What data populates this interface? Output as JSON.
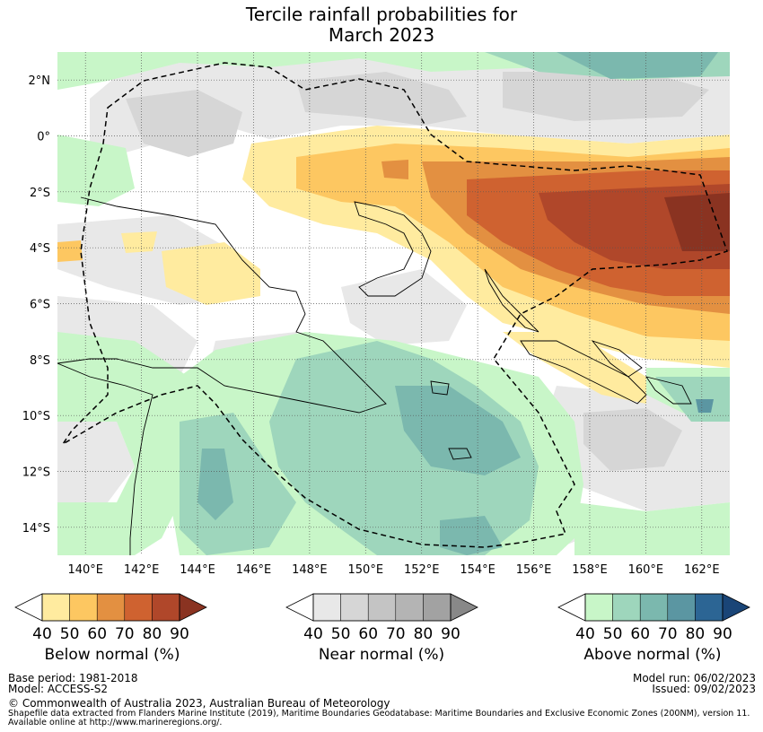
{
  "title_line1": "Tercile rainfall probabilities for",
  "title_line2": "March 2023",
  "map": {
    "lon_range": [
      139,
      163
    ],
    "lat_range": [
      -15,
      3
    ],
    "lon_ticks": [
      "140°E",
      "142°E",
      "144°E",
      "146°E",
      "148°E",
      "150°E",
      "152°E",
      "154°E",
      "156°E",
      "158°E",
      "160°E",
      "162°E"
    ],
    "lat_ticks": [
      "2°N",
      "0°",
      "2°S",
      "4°S",
      "6°S",
      "8°S",
      "10°S",
      "12°S",
      "14°S"
    ]
  },
  "legends": [
    {
      "label": "Below normal (%)",
      "ticks": [
        "40",
        "50",
        "60",
        "70",
        "80",
        "90"
      ],
      "colors": [
        "#ffeb9f",
        "#fdc761",
        "#e39041",
        "#cf6230",
        "#b0472a",
        "#8a3321"
      ]
    },
    {
      "label": "Near normal (%)",
      "ticks": [
        "40",
        "50",
        "60",
        "70",
        "80",
        "90"
      ],
      "colors": [
        "#e8e8e8",
        "#d6d6d6",
        "#c4c4c4",
        "#b4b4b4",
        "#a2a2a2",
        "#888888"
      ]
    },
    {
      "label": "Above normal (%)",
      "ticks": [
        "40",
        "50",
        "60",
        "70",
        "80",
        "90"
      ],
      "colors": [
        "#c8f6c8",
        "#9ed6bc",
        "#7bb8ae",
        "#5b96a2",
        "#2c6594",
        "#1a4577"
      ]
    }
  ],
  "footer": {
    "base_period": "Base period: 1981-2018",
    "model": "Model: ACCESS-S2",
    "model_run": "Model run: 06/02/2023",
    "issued": "Issued: 09/02/2023",
    "copyright": "© Commonwealth of Australia 2023, Australian Bureau of Meteorology",
    "shapefile1": "Shapefile data extracted from Flanders Marine Institute (2019), Maritime Boundaries Geodatabase: Maritime Boundaries and Exclusive Economic Zones (200NM), version 11.",
    "shapefile2": "Available online at http://www.marineregions.org/."
  }
}
